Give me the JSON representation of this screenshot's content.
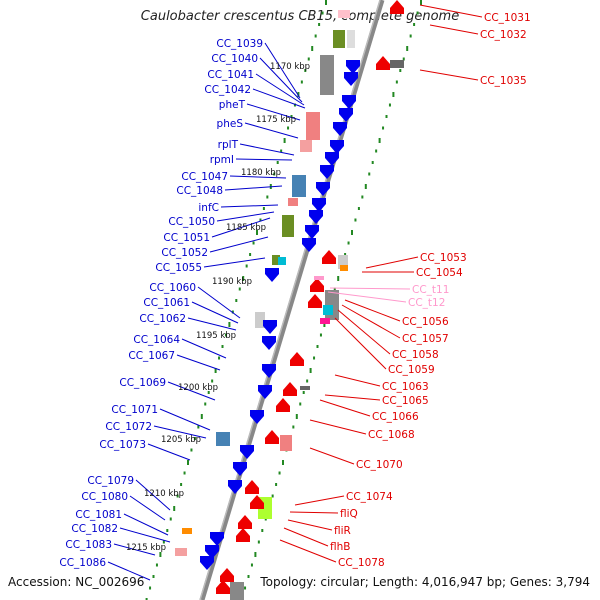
{
  "title": "Caulobacter crescentus CB15, complete genome",
  "accession": "Accession: NC_002696",
  "topology": "Topology: circular; Length: 4,016,947 bp; Genes: 3,794",
  "colors": {
    "forward_label": "#0000cc",
    "reverse_label": "#e00000",
    "rna_label": "#ff99cc",
    "tick": "#228822",
    "backbone": "#888888"
  },
  "kbp_labels": [
    "1170 kbp",
    "1175 kbp",
    "1180 kbp",
    "1185 kbp",
    "1190 kbp",
    "1195 kbp",
    "1200 kbp",
    "1205 kbp",
    "1210 kbp",
    "1215 kbp"
  ],
  "left_genes": [
    "CC_1039",
    "CC_1040",
    "CC_1041",
    "CC_1042",
    "pheT",
    "pheS",
    "rplT",
    "rpmI",
    "CC_1047",
    "CC_1048",
    "infC",
    "CC_1050",
    "CC_1051",
    "CC_1052",
    "CC_1055",
    "CC_1060",
    "CC_1061",
    "CC_1062",
    "CC_1064",
    "CC_1067",
    "CC_1069",
    "CC_1071",
    "CC_1072",
    "CC_1073",
    "CC_1079",
    "CC_1080",
    "CC_1081",
    "CC_1082",
    "CC_1083",
    "CC_1086"
  ],
  "right_genes": [
    "CC_1031",
    "CC_1032",
    "CC_1035",
    "CC_1053",
    "CC_1054",
    "CC_1056",
    "CC_1057",
    "CC_1058",
    "CC_1059",
    "CC_1063",
    "CC_1065",
    "CC_1066",
    "CC_1068",
    "CC_1070",
    "CC_1074",
    "fliQ",
    "fliR",
    "flhB",
    "CC_1078"
  ],
  "right_rnas": [
    "CC_t11",
    "CC_t12"
  ]
}
